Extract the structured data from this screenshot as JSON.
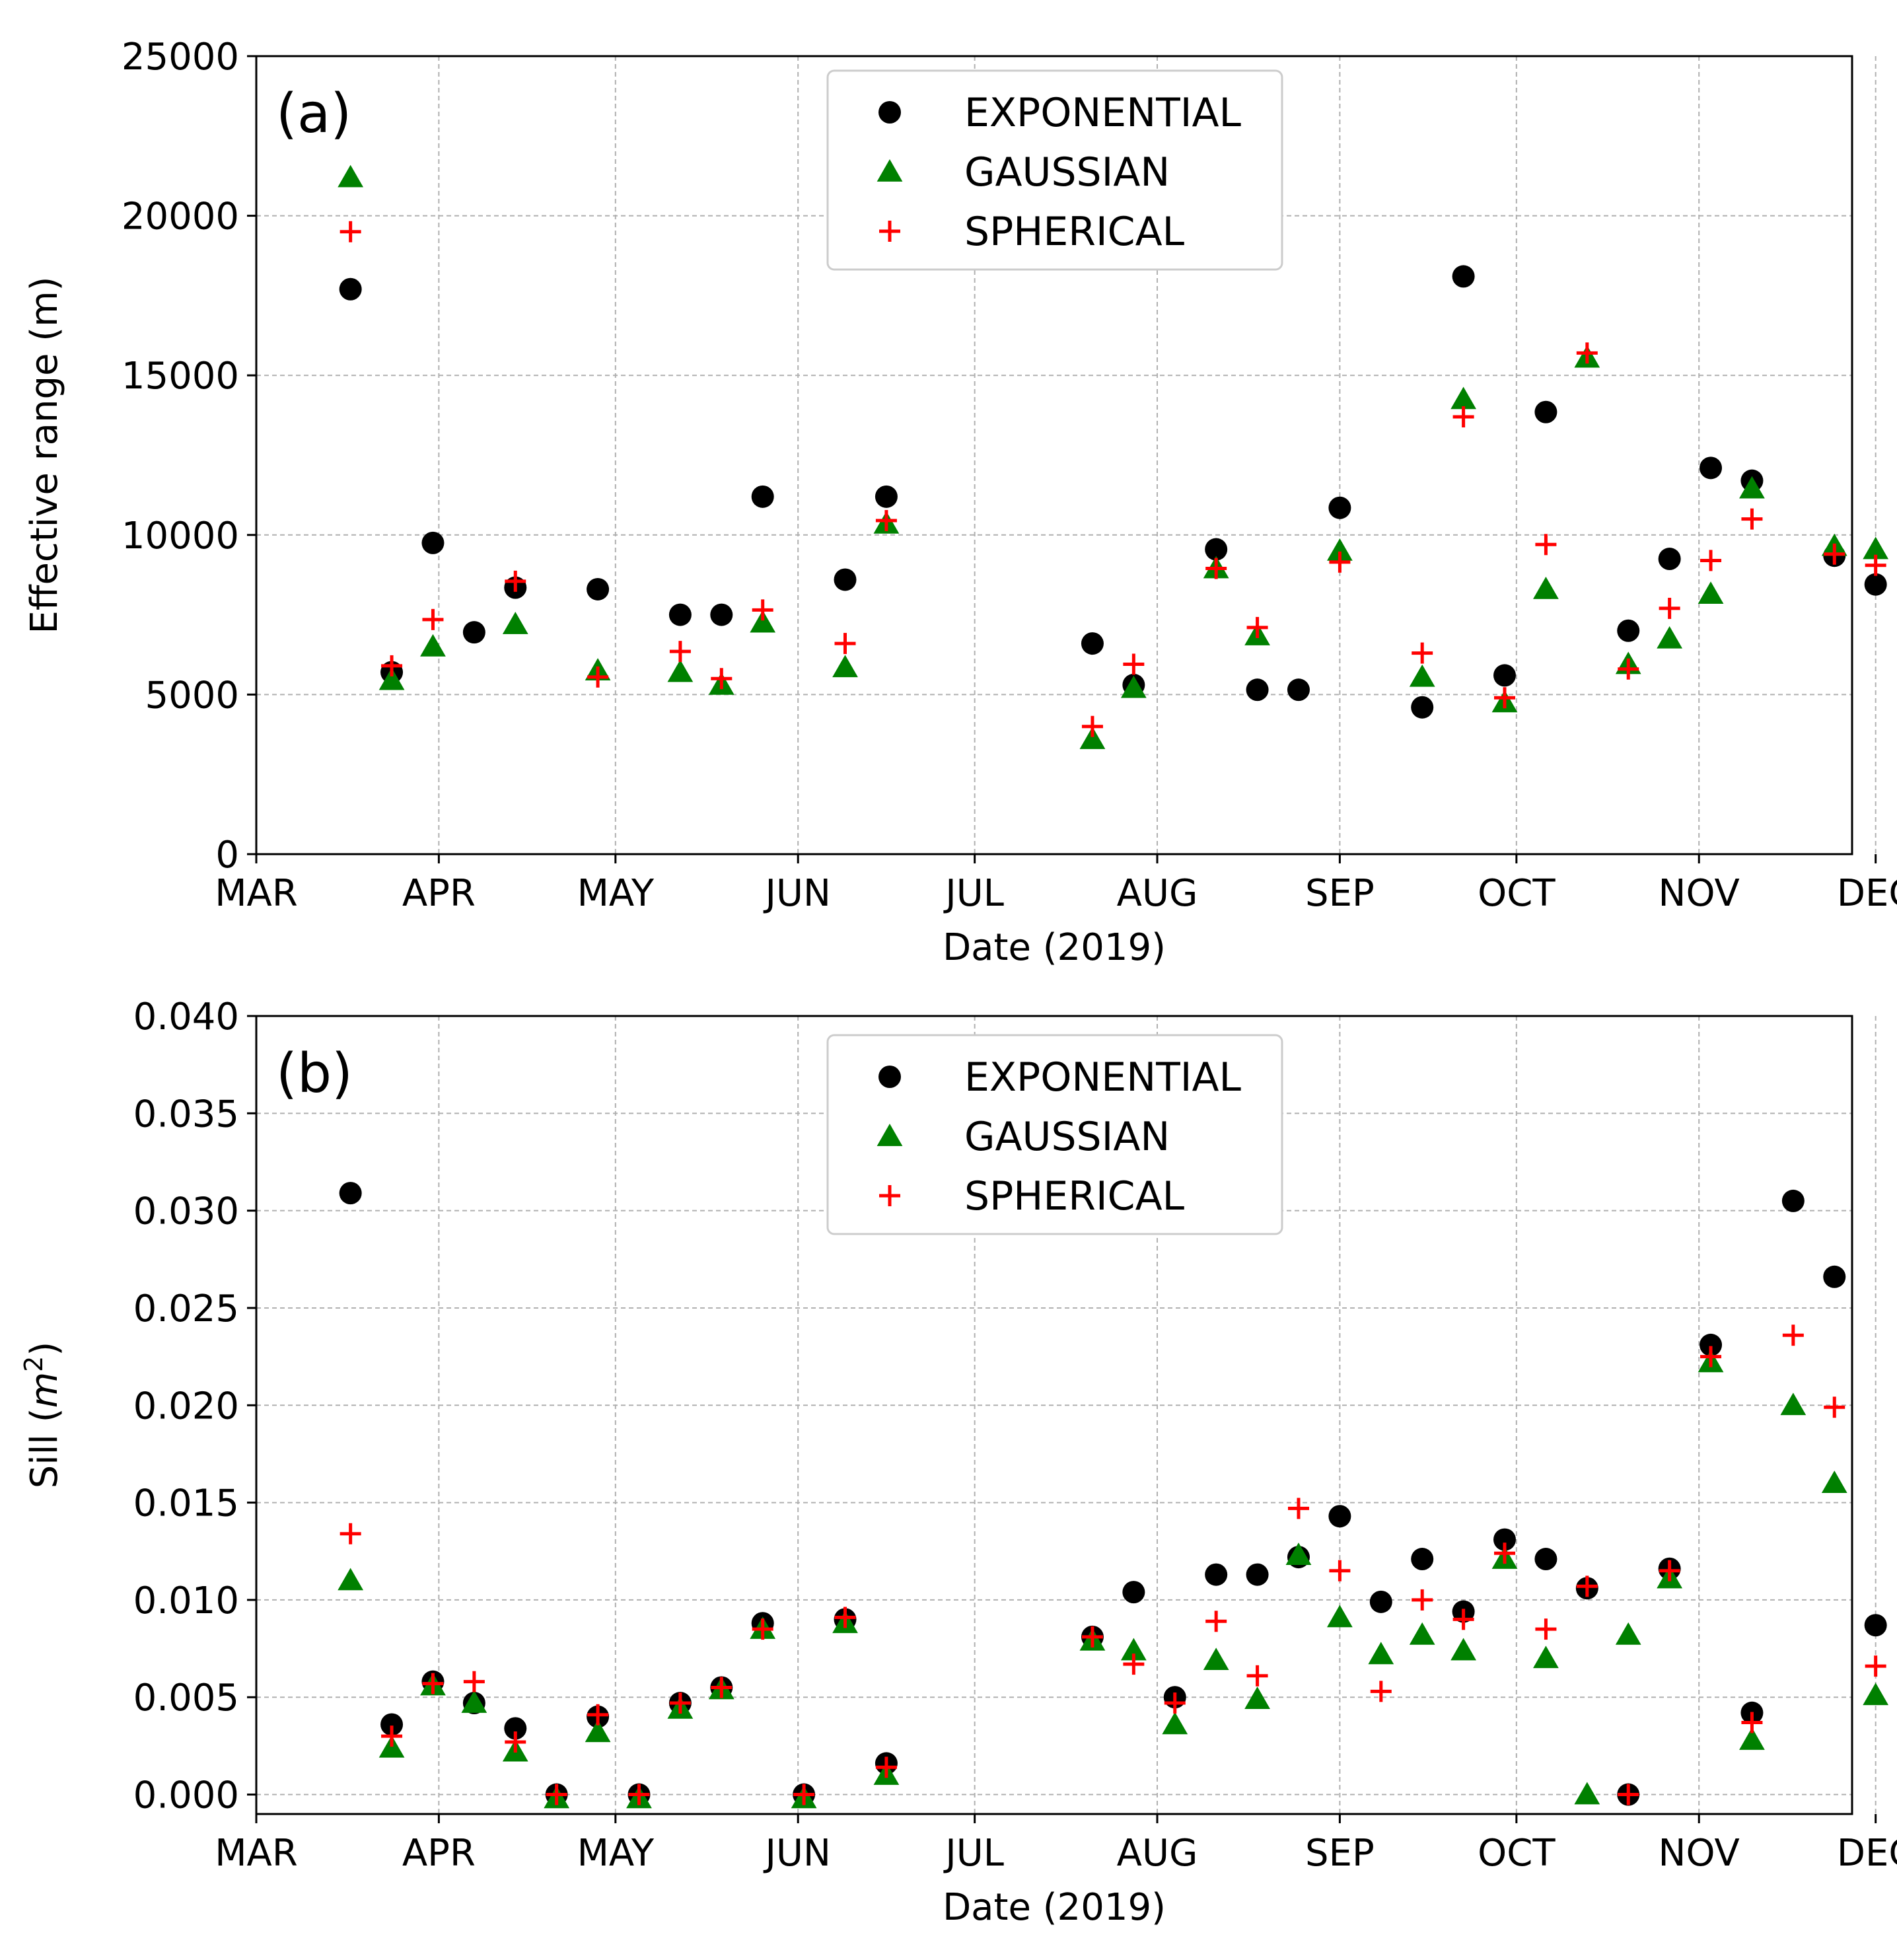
{
  "chart_data": [
    {
      "type": "scatter",
      "panel_label": "(a)",
      "xlabel": "Date (2019)",
      "ylabel": "Effective range (m)",
      "ylim": [
        0,
        25000
      ],
      "yticks": [
        0,
        5000,
        10000,
        15000,
        20000,
        25000
      ],
      "ytick_labels": [
        "0",
        "5000",
        "10000",
        "15000",
        "20000",
        "25000"
      ],
      "xlim": [
        0,
        271
      ],
      "xticks": [
        0,
        31,
        61,
        92,
        122,
        153,
        184,
        214,
        245,
        275
      ],
      "xtick_labels": [
        "MAR",
        "APR",
        "MAY",
        "JUN",
        "JUL",
        "AUG",
        "SEP",
        "OCT",
        "NOV",
        "DEC"
      ],
      "x_unit": "days since Mar 1, 2019",
      "grid": true,
      "legend": "top-center",
      "series": [
        {
          "name": "EXPONENTIAL",
          "marker": "circle",
          "color": "#000000",
          "x": [
            16,
            23,
            30,
            37,
            44,
            58,
            72,
            79,
            86,
            100,
            107,
            142,
            149,
            163,
            170,
            177,
            184,
            198,
            205,
            212,
            219,
            233,
            240,
            247,
            254,
            268,
            275
          ],
          "y": [
            17700,
            5700,
            9750,
            6950,
            8350,
            8300,
            7500,
            7500,
            11200,
            8600,
            11200,
            6600,
            5300,
            9550,
            5150,
            5150,
            10850,
            4600,
            18100,
            5600,
            13850,
            7000,
            9250,
            12100,
            11700,
            9350,
            8450
          ]
        },
        {
          "name": "GAUSSIAN",
          "marker": "triangle",
          "color": "#008000",
          "x": [
            16,
            23,
            30,
            44,
            58,
            72,
            79,
            86,
            100,
            107,
            142,
            149,
            163,
            170,
            184,
            198,
            205,
            212,
            219,
            226,
            233,
            240,
            247,
            254,
            268,
            275
          ],
          "y": [
            21200,
            5450,
            6500,
            7200,
            5750,
            5700,
            5300,
            7250,
            5850,
            10350,
            3600,
            5200,
            8950,
            6850,
            9500,
            5550,
            14250,
            4750,
            8300,
            15550,
            5950,
            6750,
            8150,
            11450,
            9650,
            9550
          ]
        },
        {
          "name": "SPHERICAL",
          "marker": "plus",
          "color": "#ff0000",
          "x": [
            16,
            23,
            30,
            44,
            58,
            72,
            79,
            86,
            100,
            107,
            142,
            149,
            163,
            170,
            184,
            198,
            205,
            212,
            219,
            226,
            233,
            240,
            247,
            254,
            268,
            275
          ],
          "y": [
            19500,
            5900,
            7350,
            8550,
            5550,
            6350,
            5500,
            7650,
            6600,
            10450,
            4000,
            5950,
            8950,
            7100,
            9150,
            6300,
            13700,
            4900,
            9700,
            15700,
            5800,
            7700,
            9200,
            10500,
            9400,
            9050
          ]
        }
      ]
    },
    {
      "type": "scatter",
      "panel_label": "(b)",
      "xlabel": "Date (2019)",
      "ylabel": "Sill (m²)",
      "ylabel_parts": {
        "prefix": "Sill (",
        "var": "m",
        "sup": "2",
        "suffix": ")"
      },
      "ylim": [
        -0.001,
        0.04
      ],
      "yticks": [
        0.0,
        0.005,
        0.01,
        0.015,
        0.02,
        0.025,
        0.03,
        0.035,
        0.04
      ],
      "ytick_labels": [
        "0.000",
        "0.005",
        "0.010",
        "0.015",
        "0.020",
        "0.025",
        "0.030",
        "0.035",
        "0.040"
      ],
      "xlim": [
        0,
        271
      ],
      "xticks": [
        0,
        31,
        61,
        92,
        122,
        153,
        184,
        214,
        245,
        275
      ],
      "xtick_labels": [
        "MAR",
        "APR",
        "MAY",
        "JUN",
        "JUL",
        "AUG",
        "SEP",
        "OCT",
        "NOV",
        "DEC"
      ],
      "x_unit": "days since Mar 1, 2019",
      "grid": true,
      "legend": "top-center",
      "series": [
        {
          "name": "EXPONENTIAL",
          "marker": "circle",
          "color": "#000000",
          "x": [
            16,
            23,
            30,
            37,
            44,
            51,
            58,
            65,
            72,
            79,
            86,
            93,
            100,
            107,
            142,
            149,
            156,
            163,
            170,
            177,
            184,
            191,
            198,
            205,
            212,
            219,
            226,
            233,
            240,
            247,
            254,
            261,
            268,
            275
          ],
          "y": [
            0.0309,
            0.0036,
            0.0058,
            0.0047,
            0.0034,
            0.0,
            0.004,
            0.0,
            0.0047,
            0.0055,
            0.0088,
            0.0,
            0.009,
            0.0016,
            0.0081,
            0.0104,
            0.005,
            0.0113,
            0.0113,
            0.0122,
            0.0143,
            0.0099,
            0.0121,
            0.0094,
            0.0131,
            0.0121,
            0.0106,
            0.0,
            0.0116,
            0.0231,
            0.0042,
            0.0305,
            0.0266,
            0.0087
          ]
        },
        {
          "name": "GAUSSIAN",
          "marker": "triangle",
          "color": "#008000",
          "x": [
            16,
            23,
            30,
            37,
            44,
            51,
            58,
            65,
            72,
            79,
            86,
            93,
            100,
            107,
            142,
            149,
            156,
            163,
            170,
            177,
            184,
            191,
            198,
            205,
            212,
            219,
            226,
            233,
            240,
            247,
            254,
            261,
            268,
            275
          ],
          "y": [
            0.011,
            0.0024,
            0.0056,
            0.0047,
            0.0022,
            -0.0002,
            0.0032,
            -0.0002,
            0.0044,
            0.0054,
            0.0085,
            -0.0002,
            0.0088,
            0.001,
            0.0079,
            0.0074,
            0.0036,
            0.0069,
            0.0049,
            0.0123,
            0.0091,
            0.0072,
            0.0082,
            0.0074,
            0.0121,
            0.007,
            0.0,
            0.0082,
            0.0111,
            0.0222,
            0.0028,
            0.02,
            0.016,
            0.0051
          ]
        },
        {
          "name": "SPHERICAL",
          "marker": "plus",
          "color": "#ff0000",
          "x": [
            16,
            23,
            30,
            37,
            44,
            51,
            58,
            65,
            72,
            79,
            86,
            93,
            100,
            107,
            142,
            149,
            156,
            163,
            170,
            177,
            184,
            191,
            198,
            205,
            212,
            219,
            226,
            233,
            240,
            247,
            254,
            261,
            268,
            275
          ],
          "y": [
            0.0134,
            0.003,
            0.0057,
            0.0058,
            0.0027,
            0.0,
            0.0041,
            0.0,
            0.0047,
            0.0055,
            0.0085,
            0.0,
            0.0091,
            0.0014,
            0.0081,
            0.0067,
            0.0047,
            0.0089,
            0.0061,
            0.0147,
            0.0115,
            0.0053,
            0.01,
            0.009,
            0.0124,
            0.0085,
            0.0107,
            0.0,
            0.0115,
            0.0225,
            0.0037,
            0.0236,
            0.0199,
            0.0066
          ]
        }
      ]
    }
  ]
}
